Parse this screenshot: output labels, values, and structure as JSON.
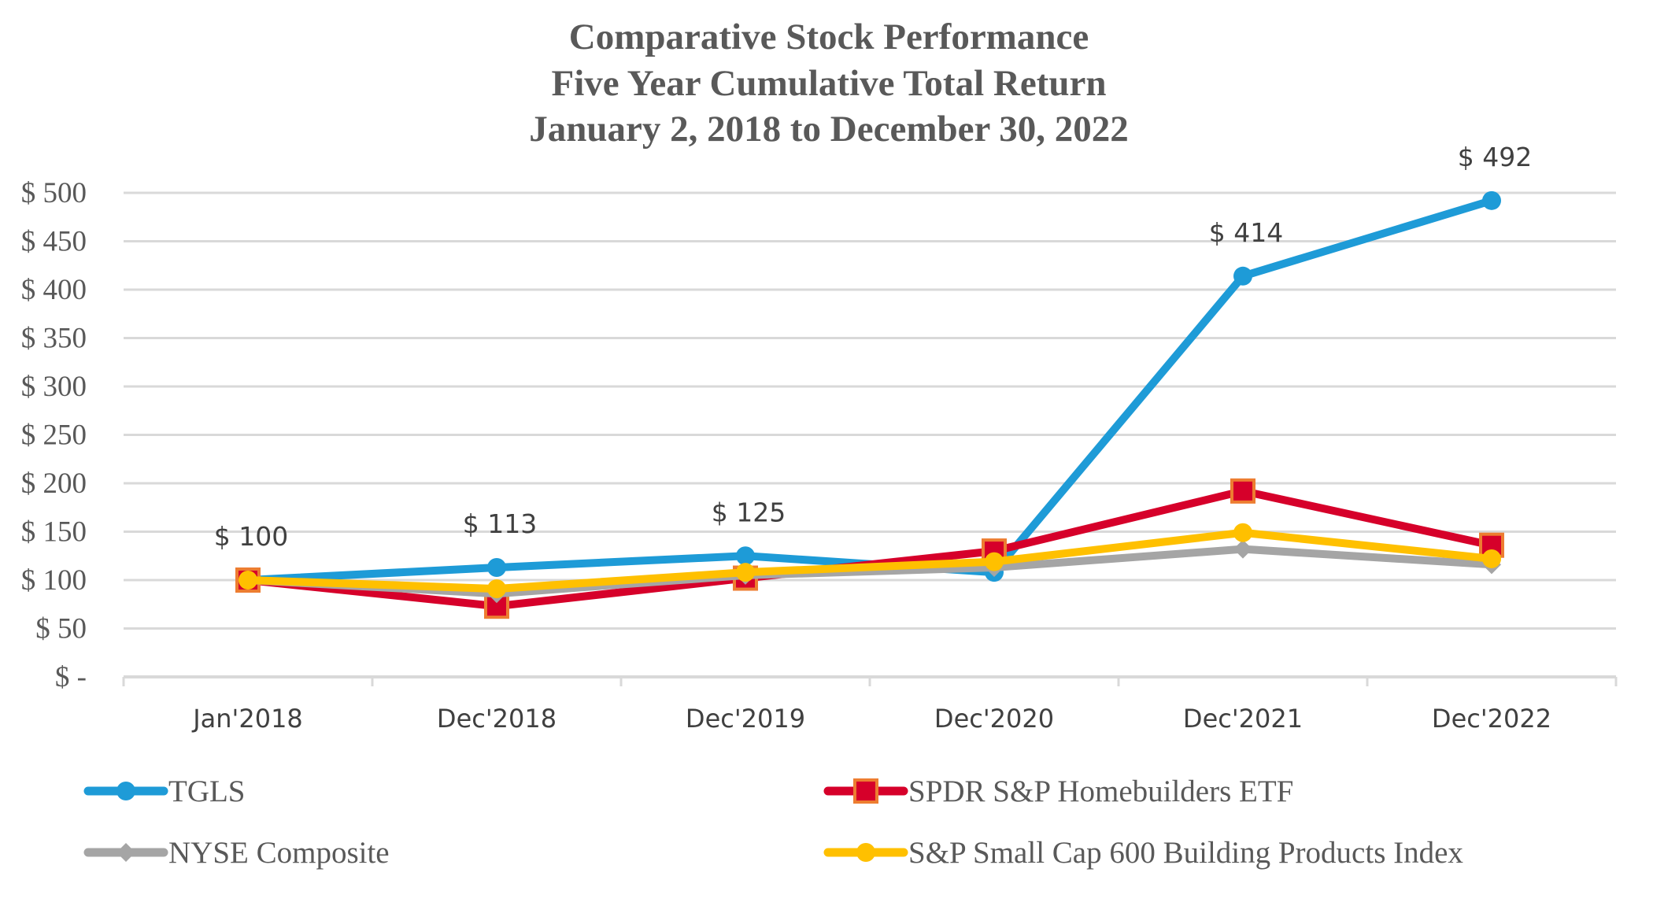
{
  "chart_data": {
    "type": "line",
    "title": [
      "Comparative Stock Performance",
      "Five Year Cumulative Total Return",
      "January 2, 2018 to December 30, 2022"
    ],
    "xlabel": "",
    "ylabel": "",
    "categories": [
      "Jan'2018",
      "Dec'2018",
      "Dec'2019",
      "Dec'2020",
      "Dec'2021",
      "Dec'2022"
    ],
    "ylim": [
      0,
      500
    ],
    "ytick_values": [
      0,
      50,
      100,
      150,
      200,
      250,
      300,
      350,
      400,
      450,
      500
    ],
    "ytick_labels": [
      "$ -",
      "$ 50",
      "$ 100",
      "$ 150",
      "$ 200",
      "$ 250",
      "$ 300",
      "$ 350",
      "$ 400",
      "$ 450",
      "$ 500"
    ],
    "grid": true,
    "legend_position": "bottom",
    "series": [
      {
        "name": "TGLS",
        "values": [
          100,
          113,
          125,
          108,
          414,
          492
        ],
        "color": "#1E9BD7",
        "marker": "circle",
        "data_labels": [
          "$ 100",
          "$ 113",
          "$ 125",
          null,
          "$ 414",
          "$ 492"
        ]
      },
      {
        "name": "SPDR S&P Homebuilders ETF",
        "values": [
          100,
          73,
          102,
          130,
          192,
          136
        ],
        "color": "#D6002A",
        "marker_edge": "#ED7D31",
        "marker": "square"
      },
      {
        "name": "NYSE Composite",
        "values": [
          100,
          86,
          105,
          113,
          132,
          116
        ],
        "color": "#A5A5A5",
        "marker": "diamond"
      },
      {
        "name": "S&P Small Cap 600 Building Products Index",
        "values": [
          100,
          91,
          108,
          119,
          149,
          122
        ],
        "color": "#FFC000",
        "marker": "circle"
      }
    ],
    "draw_order": [
      0,
      1,
      2,
      3
    ]
  }
}
